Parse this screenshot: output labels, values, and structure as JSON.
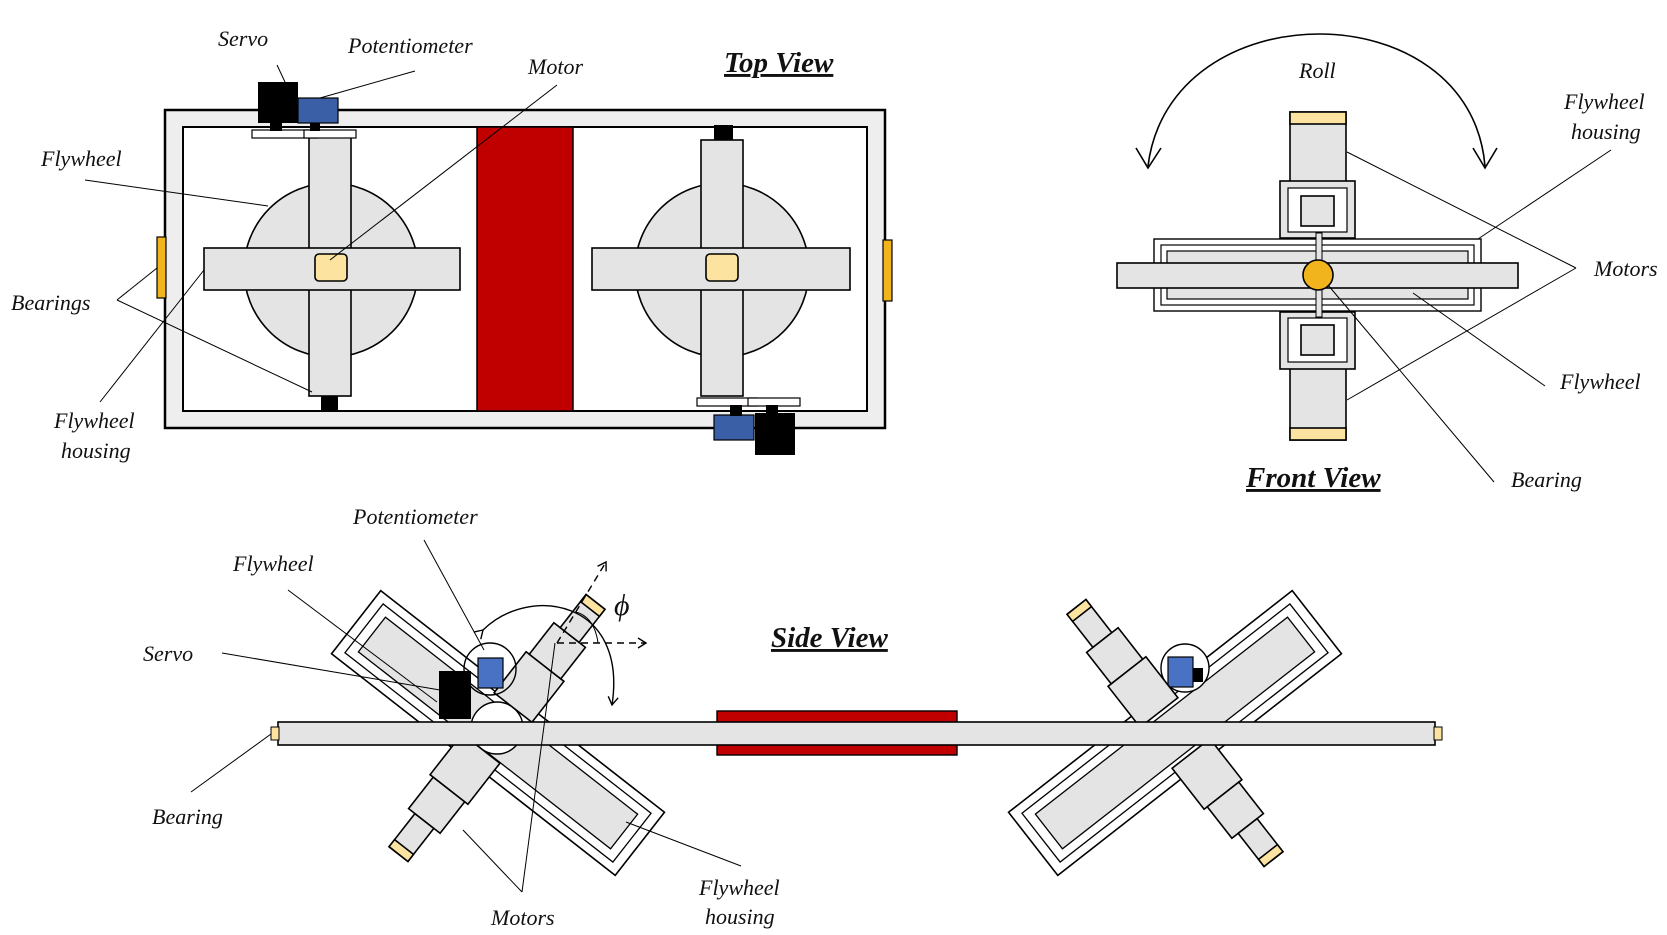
{
  "colors": {
    "frame": "#eeeeee",
    "part": "#e4e4e4",
    "motor_block": "#c00000",
    "servo": "#000000",
    "potentiometer": "#3b5fa6",
    "bearing": "#f2b41c",
    "bearing_light": "#fce4a0",
    "ink": "#000000"
  },
  "top_view": {
    "title": "Top View",
    "labels": {
      "servo": "Servo",
      "potentiometer": "Potentiometer",
      "motor": "Motor",
      "flywheel": "Flywheel",
      "bearings": "Bearings",
      "housing_line1": "Flywheel",
      "housing_line2": "housing"
    }
  },
  "front_view": {
    "title": "Front View",
    "labels": {
      "roll": "Roll",
      "housing_line1": "Flywheel",
      "housing_line2": "housing",
      "motors": "Motors",
      "flywheel": "Flywheel",
      "bearing": "Bearing"
    }
  },
  "side_view": {
    "title": "Side View",
    "labels": {
      "potentiometer": "Potentiometer",
      "flywheel": "Flywheel",
      "servo": "Servo",
      "angle": "ϕ",
      "bearing": "Bearing",
      "motors": "Motors",
      "housing_line1": "Flywheel",
      "housing_line2": "housing"
    }
  }
}
